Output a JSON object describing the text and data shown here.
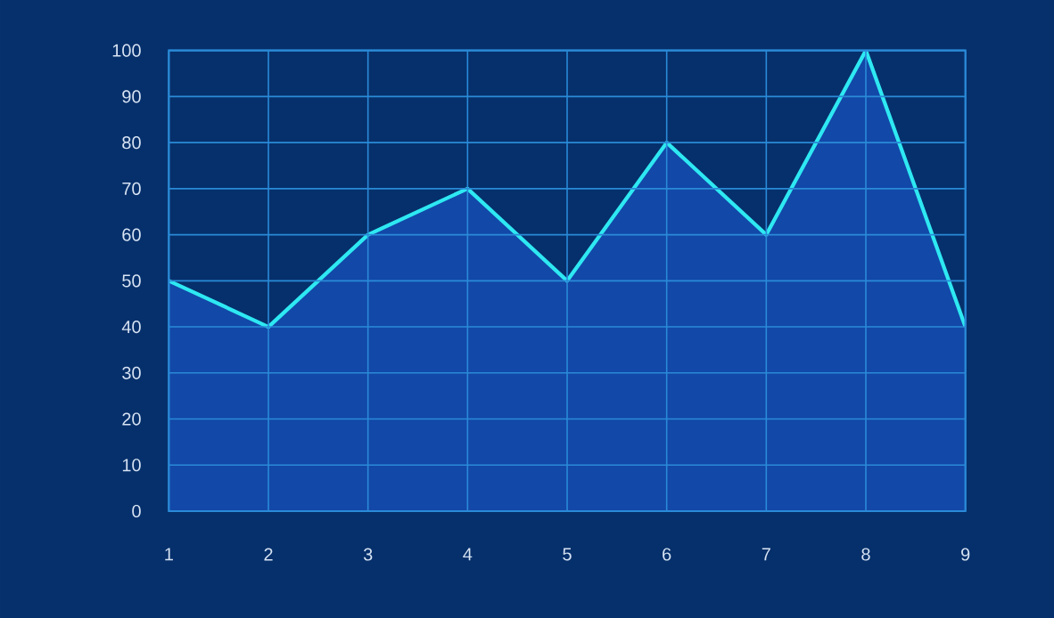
{
  "chart_data": {
    "type": "area",
    "x": [
      1,
      2,
      3,
      4,
      5,
      6,
      7,
      8,
      9
    ],
    "series": [
      {
        "color": "#2ee8f2",
        "values": [
          50,
          40,
          60,
          70,
          50,
          80,
          60,
          100,
          40
        ]
      }
    ],
    "xlim": [
      1,
      9
    ],
    "xticks": [
      1,
      2,
      3,
      4,
      5,
      6,
      7,
      8,
      9
    ],
    "ylim": [
      0,
      100
    ],
    "yticks": [
      0,
      10,
      20,
      30,
      40,
      50,
      60,
      70,
      80,
      90,
      100
    ],
    "grid": true
  }
}
